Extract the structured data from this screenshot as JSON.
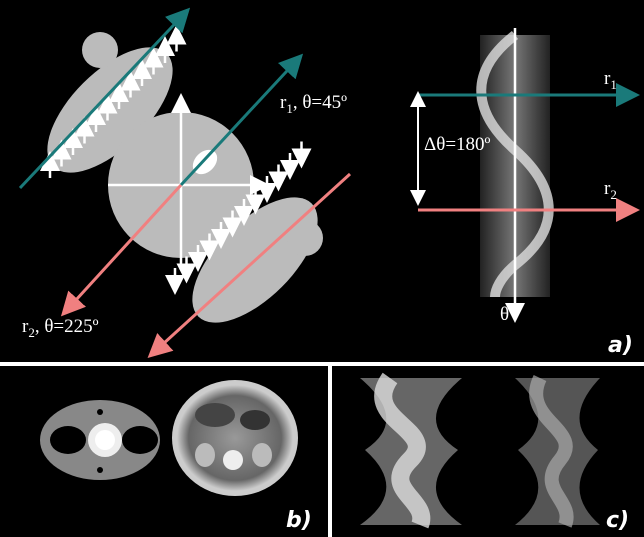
{
  "panel_a": {
    "beam1": {
      "symbol": "r",
      "subscript": "1",
      "angle": ", θ=45º"
    },
    "beam2": {
      "symbol": "r",
      "subscript": "2",
      "angle": ", θ=225º"
    },
    "sino_r1": {
      "symbol": "r",
      "subscript": "1"
    },
    "sino_r2": {
      "symbol": "r",
      "subscript": "2"
    },
    "delta": "Δθ=180º",
    "theta_axis": "θ",
    "label": "a)"
  },
  "panel_b": {
    "label": "b)"
  },
  "panel_c": {
    "label": "c)"
  }
}
